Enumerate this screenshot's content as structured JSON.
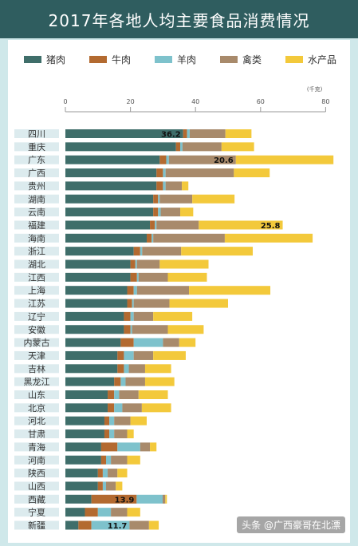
{
  "title": "2017年各地人均主要食品消费情况",
  "watermark": "头条 @广西豪哥在北漂",
  "chart_data": {
    "type": "bar",
    "stacked": true,
    "orientation": "horizontal",
    "title": "2017年各地人均主要食品消费情况",
    "unit": "(千克)",
    "xlim": [
      0,
      80
    ],
    "xticks": [
      0,
      20,
      40,
      60,
      80
    ],
    "legend_position": "top",
    "categories": [
      "四川",
      "重庆",
      "广东",
      "广西",
      "贵州",
      "湖南",
      "云南",
      "福建",
      "海南",
      "浙江",
      "湖北",
      "江西",
      "上海",
      "江苏",
      "辽宁",
      "安徽",
      "内蒙古",
      "天津",
      "吉林",
      "黑龙江",
      "山东",
      "北京",
      "河北",
      "甘肃",
      "青海",
      "河南",
      "陕西",
      "山西",
      "西藏",
      "宁夏",
      "新疆"
    ],
    "series": [
      {
        "name": "猪肉",
        "color": "#3f6e6a",
        "values": [
          36.2,
          34,
          29,
          28,
          28,
          27,
          27,
          26,
          25,
          21,
          20,
          20,
          19,
          19,
          18,
          18,
          17,
          16,
          16,
          15,
          13,
          13,
          12,
          12,
          11,
          11,
          10,
          10,
          8,
          6,
          4
        ]
      },
      {
        "name": "牛肉",
        "color": "#b36a30",
        "values": [
          1.2,
          1.3,
          2,
          2,
          2,
          1.5,
          1.5,
          1.5,
          1.5,
          2,
          1.5,
          2,
          2,
          1.5,
          2,
          2,
          4,
          2,
          2,
          2,
          2,
          2,
          1.5,
          1.5,
          5,
          1.5,
          1.5,
          1.5,
          13.9,
          4,
          4
        ]
      },
      {
        "name": "羊肉",
        "color": "#7ec2cc",
        "values": [
          0.8,
          0.7,
          0.8,
          0.8,
          0.8,
          0.5,
          0.8,
          0.5,
          0.5,
          0.6,
          0.5,
          0.5,
          1,
          0.5,
          1,
          0.5,
          9,
          3,
          1.5,
          1.5,
          1.5,
          2.5,
          1.5,
          1.5,
          7,
          1.5,
          1.5,
          1,
          8,
          4,
          11.7
        ]
      },
      {
        "name": "禽类",
        "color": "#a88a6b",
        "values": [
          11,
          12,
          20.6,
          21,
          5,
          10,
          6,
          13,
          22,
          12,
          7,
          9,
          16,
          11,
          6,
          11,
          5,
          6,
          5,
          6,
          6,
          6,
          5,
          4,
          3,
          5,
          3,
          3,
          0.8,
          5,
          6
        ]
      },
      {
        "name": "水产品",
        "color": "#f3c93b",
        "values": [
          8,
          10,
          30,
          11,
          2,
          13,
          4,
          25.8,
          27,
          22,
          15,
          12,
          25,
          18,
          12,
          11,
          5,
          10,
          8,
          9,
          9,
          9,
          5,
          2,
          2,
          4,
          3,
          2,
          0.5,
          4,
          3
        ]
      }
    ],
    "data_labels": [
      {
        "category": "四川",
        "series": "猪肉",
        "text": "36.2"
      },
      {
        "category": "广东",
        "series": "禽类",
        "text": "20.6"
      },
      {
        "category": "福建",
        "series": "水产品",
        "text": "25.8"
      },
      {
        "category": "西藏",
        "series": "牛肉",
        "text": "13.9"
      },
      {
        "category": "新疆",
        "series": "羊肉",
        "text": "11.7"
      }
    ]
  }
}
